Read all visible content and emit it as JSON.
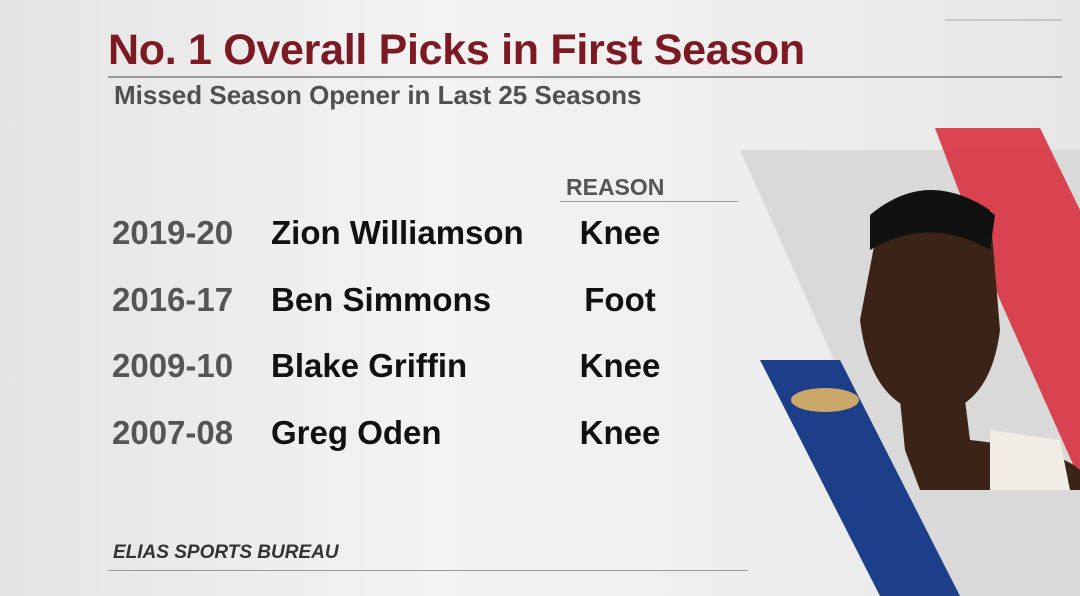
{
  "header": {
    "title": "No. 1 Overall Picks in First Season",
    "subtitle": "Missed Season Opener in Last 25 Seasons"
  },
  "table": {
    "column_header": "REASON",
    "rows": [
      [
        "2019-20",
        "Zion Williamson",
        "Knee"
      ],
      [
        "2016-17",
        "Ben Simmons",
        "Foot"
      ],
      [
        "2009-10",
        "Blake Griffin",
        "Knee"
      ],
      [
        "2007-08",
        "Greg Oden",
        "Knee"
      ]
    ]
  },
  "footer": "ELIAS SPORTS BUREAU"
}
